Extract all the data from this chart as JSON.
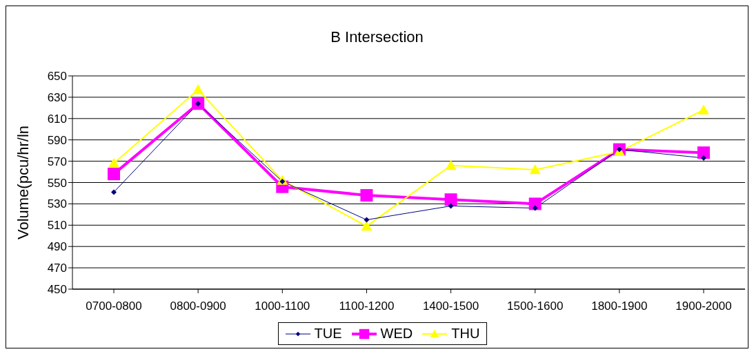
{
  "chart_data": {
    "type": "line",
    "title": "B Intersection",
    "ylabel": "Volume(pcu/hr/ln",
    "categories": [
      "0700-0800",
      "0800-0900",
      "1000-1100",
      "1100-1200",
      "1400-1500",
      "1500-1600",
      "1800-1900",
      "1900-2000"
    ],
    "series": [
      {
        "name": "TUE",
        "color": "#000080",
        "marker": "diamond",
        "values": [
          541,
          624,
          551,
          515,
          528,
          526,
          581,
          573
        ]
      },
      {
        "name": "WED",
        "color": "#ff00ff",
        "marker": "square",
        "values": [
          558,
          624,
          546,
          538,
          534,
          530,
          581,
          578
        ]
      },
      {
        "name": "THU",
        "color": "#ffff00",
        "marker": "triangle",
        "values": [
          568,
          637,
          552,
          509,
          566,
          562,
          579,
          618
        ]
      }
    ],
    "ylim": [
      450,
      650
    ],
    "yticks": [
      450,
      470,
      490,
      510,
      530,
      550,
      570,
      590,
      610,
      630,
      650
    ],
    "grid": "y",
    "legend": "bottom"
  }
}
